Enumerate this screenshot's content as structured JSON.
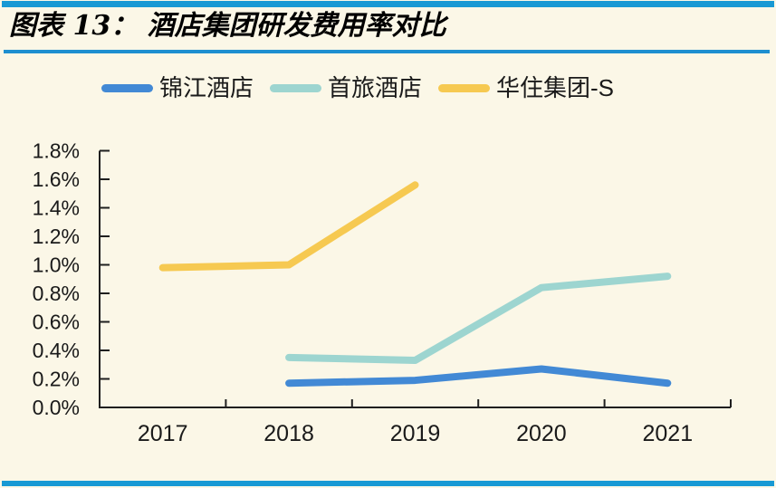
{
  "page": {
    "title": "图表 13： 酒店集团研发费用率对比",
    "accent_color": "#1899d4",
    "background_color": "#fbf7e7"
  },
  "chart_data": {
    "type": "line",
    "title": "酒店集团研发费用率对比",
    "categories": [
      "2017",
      "2018",
      "2019",
      "2020",
      "2021"
    ],
    "series": [
      {
        "name": "锦江酒店",
        "color": "#4289d5",
        "values": [
          null,
          0.17,
          0.19,
          0.27,
          0.17
        ]
      },
      {
        "name": "首旅酒店",
        "color": "#9dd5d0",
        "values": [
          null,
          0.35,
          0.33,
          0.84,
          0.92
        ]
      },
      {
        "name": "华住集团-S",
        "color": "#f6c951",
        "values": [
          0.98,
          1.0,
          1.56,
          null,
          null
        ]
      }
    ],
    "y_unit": "%",
    "ylim": [
      0,
      1.8
    ],
    "y_tick_step": 0.2,
    "y_ticks": [
      "1.8%",
      "1.6%",
      "1.4%",
      "1.2%",
      "1.0%",
      "0.8%",
      "0.6%",
      "0.4%",
      "0.2%",
      "0.0%"
    ],
    "grid": false,
    "legend_position": "top",
    "axis_color": "#1f1f1f"
  }
}
